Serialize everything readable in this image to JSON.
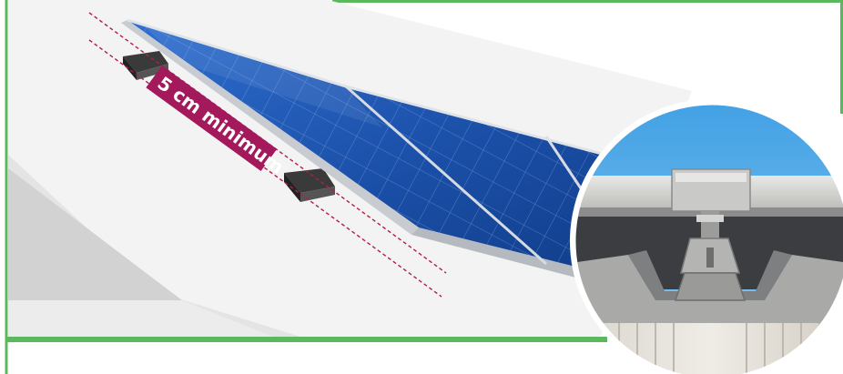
{
  "annotation": {
    "label": "5 cm minimum"
  },
  "colors": {
    "frame_green": "#5cb85c",
    "badge_magenta": "#a3195b",
    "guide_line": "#b01e4c",
    "roof_light": "#f3f3f3",
    "roof_shade": "#d9d9d9",
    "panel_blue": "#1c4fa0",
    "panel_frame": "#c8ccd1",
    "sky_blue": "#4aa8e6"
  },
  "icons": [
    "solar-panel-array",
    "mounting-block",
    "roof-clamp-photo"
  ]
}
